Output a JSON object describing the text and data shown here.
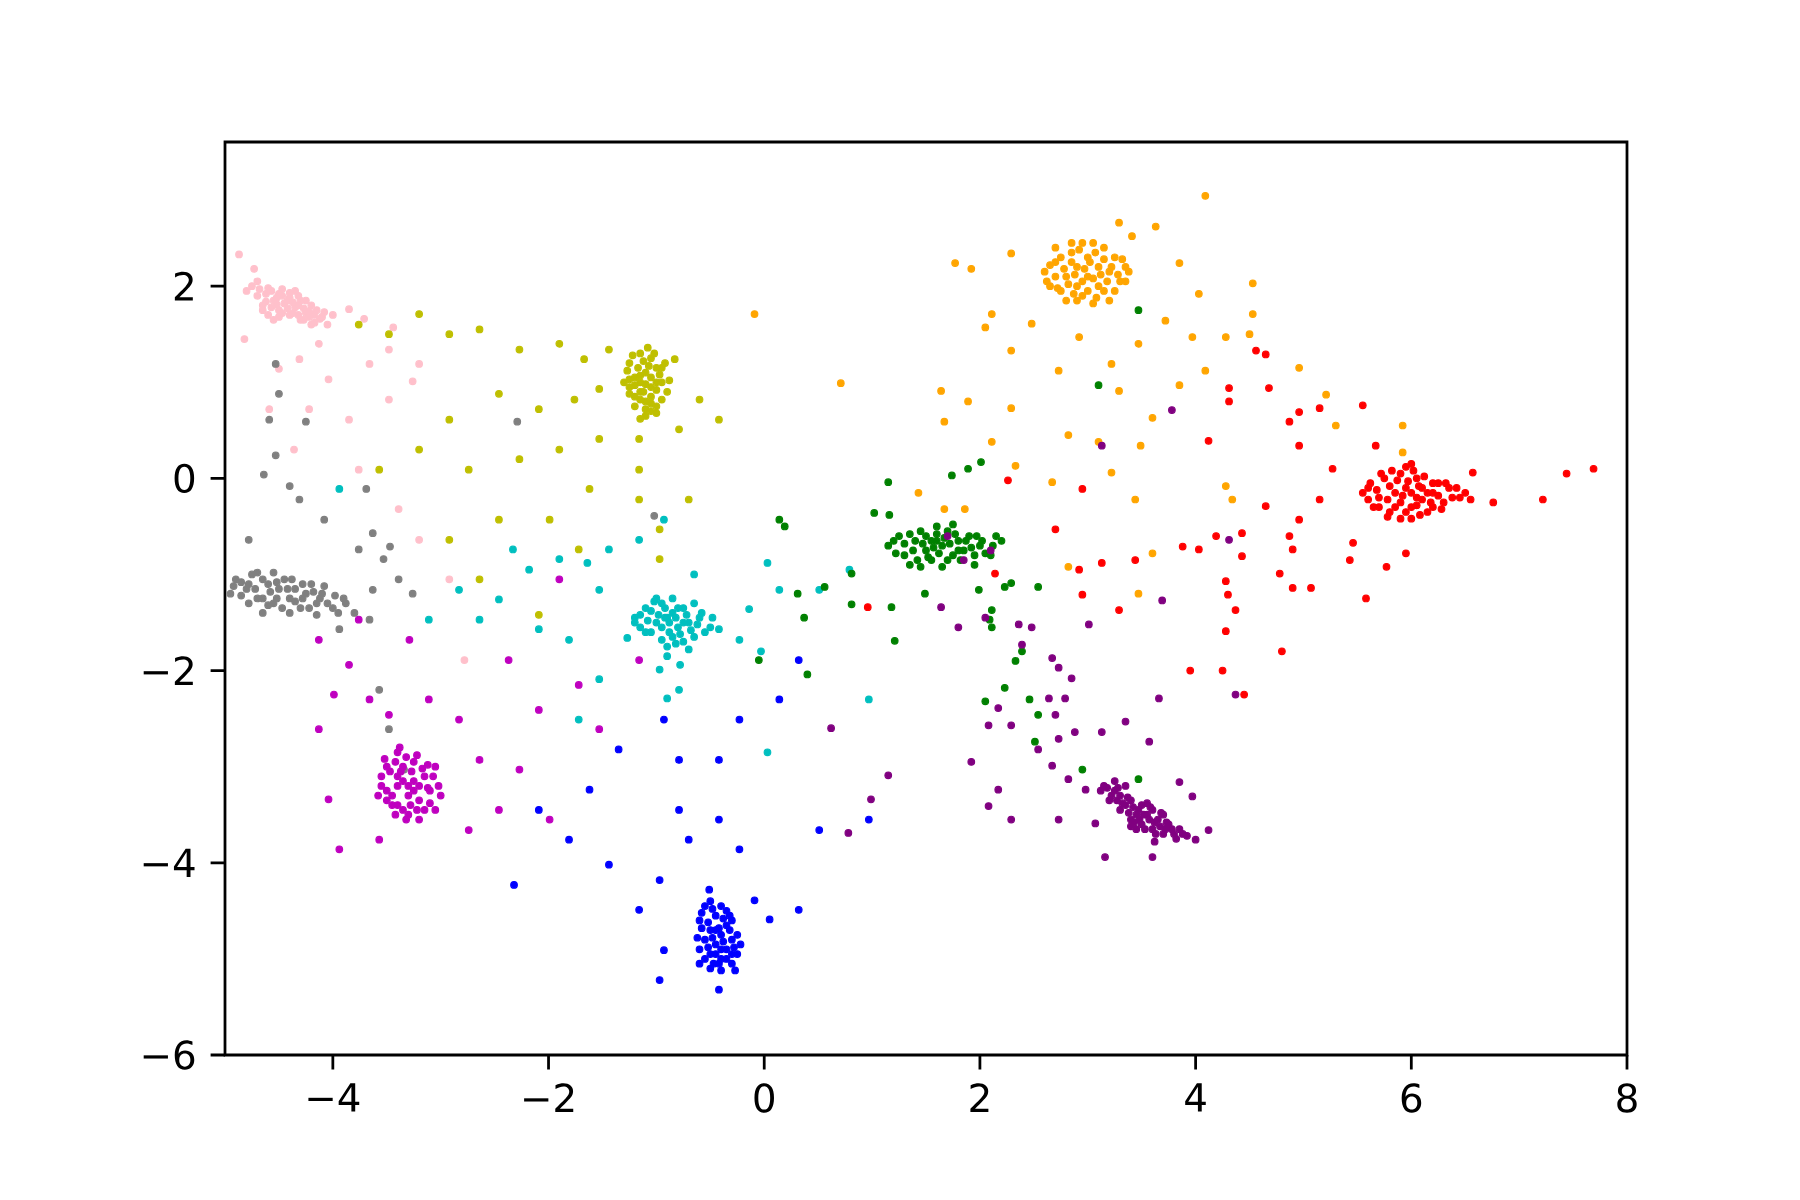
{
  "chart_data": {
    "type": "scatter",
    "marker": "circle",
    "xlim": [
      -5,
      8
    ],
    "ylim": [
      -6,
      3.5
    ],
    "xticks": [
      {
        "value": -4,
        "label": "−4"
      },
      {
        "value": -2,
        "label": "−2"
      },
      0,
      2,
      4,
      6,
      8
    ],
    "yticks": [
      {
        "value": -6,
        "label": "−6"
      },
      {
        "value": -4,
        "label": "−4"
      },
      {
        "value": -2,
        "label": "−2"
      },
      0,
      2
    ],
    "series": [
      {
        "color": "#ffc0cb",
        "x": [
          -4.8,
          -4.7,
          -4.65,
          -4.6,
          -4.55,
          -4.5,
          -4.5,
          -4.45,
          -4.4,
          -4.4,
          -4.35,
          -4.3,
          -4.3,
          -4.25,
          -4.2,
          -4.15,
          -4.1,
          -4.05,
          -4.6,
          -4.7,
          -4.35,
          -4.2,
          -4.0,
          -4.55,
          -4.87,
          -4.73,
          -3.85,
          -3.71,
          -4.13,
          -4.31,
          -4.5,
          -4.04,
          -3.66,
          -3.48,
          -3.2,
          -4.22,
          -3.85,
          -3.48,
          -4.36,
          -3.76,
          -3.39,
          -3.2,
          -2.92,
          -2.78,
          -4.59,
          -4.82,
          -3.44,
          -3.26,
          -4.75,
          -4.68,
          -4.62,
          -4.57,
          -4.52,
          -4.47,
          -4.42,
          -4.37,
          -4.32,
          -4.27,
          -4.22,
          -4.17,
          -4.12,
          -4.62,
          -4.57,
          -4.52,
          -4.47,
          -4.42,
          -4.37,
          -4.32,
          -4.27,
          -4.22,
          -4.17,
          -4.47,
          -4.4,
          -4.32,
          -4.25,
          -4.65,
          -4.5,
          -4.08
        ],
        "values": [
          1.95,
          1.9,
          1.8,
          1.98,
          1.85,
          1.75,
          1.92,
          1.82,
          1.7,
          1.88,
          1.78,
          1.65,
          1.85,
          1.72,
          1.6,
          1.75,
          1.68,
          1.6,
          1.7,
          2.05,
          1.95,
          1.8,
          1.7,
          1.65,
          2.33,
          2.18,
          1.76,
          1.66,
          1.4,
          1.24,
          1.14,
          1.03,
          1.19,
          1.34,
          1.19,
          0.72,
          0.61,
          0.82,
          0.3,
          0.09,
          -0.32,
          -0.64,
          -1.05,
          -1.89,
          0.72,
          1.45,
          1.57,
          1.01,
          2.0,
          1.97,
          1.92,
          1.95,
          1.88,
          1.9,
          1.85,
          1.83,
          1.8,
          1.77,
          1.74,
          1.7,
          1.66,
          1.84,
          1.78,
          1.81,
          1.72,
          1.77,
          1.72,
          1.7,
          1.65,
          1.68,
          1.62,
          1.97,
          1.93,
          1.9,
          1.85,
          1.75,
          1.68,
          1.73
        ]
      },
      {
        "color": "#bfbf00",
        "x": [
          -1.25,
          -1.2,
          -1.15,
          -1.1,
          -1.05,
          -1.0,
          -1.1,
          -1.2,
          -0.95,
          -1.05,
          -1.15,
          -1.0,
          -1.1,
          -1.25,
          -0.9,
          -1.05,
          -1.15,
          -1.0,
          -3.2,
          -3.76,
          -3.48,
          -2.92,
          -2.64,
          -2.27,
          -1.9,
          -1.67,
          -1.53,
          -1.76,
          -2.09,
          -2.46,
          -2.92,
          -3.2,
          -3.57,
          -2.74,
          -2.27,
          -1.9,
          -1.53,
          -1.16,
          -0.79,
          -0.42,
          -0.6,
          -1.62,
          -1.16,
          -0.7,
          -1.99,
          -2.46,
          -2.92,
          -2.64,
          -0.97,
          -1.72,
          -1.16,
          -0.83,
          -1.44,
          -2.09,
          -0.97,
          -1.22,
          -1.12,
          -1.02,
          -1.27,
          -1.17,
          -1.07,
          -0.97,
          -1.25,
          -1.15,
          -1.05,
          -0.95,
          -1.2,
          -1.1,
          -1.0,
          -1.25,
          -1.15,
          -1.05,
          -0.95,
          -1.2,
          -1.1,
          -1.0,
          -1.15,
          -1.05,
          -1.08,
          -0.92,
          -1.3,
          -0.88,
          -1.12
        ],
        "values": [
          1.2,
          1.05,
          0.9,
          1.1,
          0.95,
          1.0,
          0.8,
          0.85,
          1.15,
          1.25,
          1.3,
          0.75,
          0.65,
          0.95,
          0.9,
          0.85,
          1.0,
          1.15,
          1.71,
          1.6,
          1.5,
          1.5,
          1.55,
          1.34,
          1.4,
          1.24,
          0.93,
          0.82,
          0.72,
          0.88,
          0.61,
          0.3,
          0.09,
          0.09,
          0.2,
          0.3,
          0.41,
          0.41,
          0.51,
          0.61,
          0.82,
          -0.11,
          -0.22,
          -0.22,
          -0.43,
          -0.43,
          -0.64,
          -1.05,
          -0.53,
          -0.74,
          0.09,
          1.24,
          1.34,
          -1.42,
          -0.84,
          1.28,
          1.22,
          1.3,
          1.12,
          1.15,
          1.17,
          1.08,
          1.03,
          1.07,
          1.05,
          1.0,
          0.97,
          0.98,
          0.92,
          0.88,
          0.82,
          0.78,
          0.82,
          0.75,
          0.72,
          0.68,
          0.62,
          0.7,
          1.36,
          1.2,
          1.0,
          1.02,
          0.9
        ]
      },
      {
        "color": "#808080",
        "x": [
          -4.9,
          -4.8,
          -4.75,
          -4.7,
          -4.6,
          -4.55,
          -4.5,
          -4.45,
          -4.4,
          -4.35,
          -4.3,
          -4.25,
          -4.2,
          -4.15,
          -4.1,
          -4.0,
          -3.9,
          -3.8,
          -4.65,
          -4.95,
          -3.63,
          -3.26,
          -4.5,
          -4.64,
          -4.31,
          -4.08,
          -3.76,
          -3.53,
          -3.39,
          -3.66,
          -3.94,
          -3.57,
          -3.48,
          -3.34,
          -4.59,
          -4.78,
          -4.53,
          -4.25,
          -4.53,
          -4.4,
          -3.63,
          -3.47,
          -3.69,
          -2.29,
          -1.02,
          -4.92,
          -4.85,
          -4.85,
          -4.78,
          -4.78,
          -4.72,
          -4.65,
          -4.65,
          -4.58,
          -4.52,
          -4.52,
          -4.47,
          -4.42,
          -4.38,
          -4.35,
          -4.28,
          -4.28,
          -4.22,
          -4.18,
          -4.12,
          -4.08,
          -4.05,
          -3.98,
          -3.95,
          -3.88,
          -4.6,
          -4.4,
          -4.7,
          -4.55,
          -4.15
        ],
        "values": [
          -1.05,
          -1.15,
          -1.0,
          -1.25,
          -1.1,
          -1.3,
          -1.15,
          -1.05,
          -1.25,
          -1.15,
          -1.35,
          -1.2,
          -1.1,
          -1.3,
          -1.2,
          -1.35,
          -1.25,
          -1.4,
          -1.4,
          -1.2,
          -1.16,
          -1.2,
          0.88,
          0.04,
          -0.22,
          -0.43,
          -0.74,
          -0.84,
          -1.05,
          -1.47,
          -1.57,
          -2.2,
          -2.61,
          -3.03,
          0.61,
          -0.64,
          1.19,
          0.59,
          0.24,
          -0.08,
          -0.57,
          -0.71,
          -0.11,
          0.59,
          -0.39,
          -1.12,
          -1.08,
          -1.22,
          -1.1,
          -1.3,
          -1.15,
          -1.05,
          -1.25,
          -1.18,
          -1.08,
          -1.25,
          -1.35,
          -1.15,
          -1.05,
          -1.28,
          -1.1,
          -1.25,
          -1.35,
          -1.18,
          -1.25,
          -1.12,
          -1.3,
          -1.22,
          -1.4,
          -1.3,
          -1.32,
          -1.4,
          -0.98,
          -0.98,
          -1.42
        ]
      },
      {
        "color": "#bf00bf",
        "x": [
          -3.5,
          -3.45,
          -3.4,
          -3.35,
          -3.3,
          -3.25,
          -3.2,
          -3.15,
          -3.1,
          -3.05,
          -3.4,
          -3.3,
          -3.55,
          -3.2,
          -3.0,
          -3.35,
          -3.25,
          -3.45,
          -4.13,
          -3.85,
          -3.99,
          -3.66,
          -4.13,
          -3.48,
          -3.11,
          -2.83,
          -2.64,
          -2.46,
          -2.74,
          -4.04,
          -3.94,
          -3.57,
          -2.09,
          -1.72,
          -1.16,
          -2.27,
          -1.99,
          -1.53,
          -3.76,
          -3.29,
          -2.37,
          -1.9,
          -3.52,
          -3.42,
          -3.32,
          -3.22,
          -3.12,
          -3.55,
          -3.47,
          -3.37,
          -3.27,
          -3.17,
          -3.07,
          -3.5,
          -3.4,
          -3.3,
          -3.2,
          -3.1,
          -3.02,
          -3.5,
          -3.4,
          -3.28,
          -3.15,
          -3.42,
          -3.32,
          -3.22,
          -3.35,
          -3.25,
          -3.12,
          -3.58,
          -3.38,
          -3.05
        ],
        "values": [
          -3.0,
          -3.3,
          -3.1,
          -3.45,
          -3.2,
          -2.95,
          -3.35,
          -3.1,
          -3.25,
          -3.0,
          -2.85,
          -3.5,
          -3.2,
          -3.55,
          -3.3,
          -3.0,
          -3.15,
          -3.4,
          -1.68,
          -1.94,
          -2.25,
          -2.3,
          -2.61,
          -2.46,
          -2.3,
          -2.51,
          -2.93,
          -3.45,
          -3.66,
          -3.34,
          -3.86,
          -3.76,
          -2.41,
          -2.15,
          -1.89,
          -3.03,
          -3.55,
          -2.61,
          -1.47,
          -1.68,
          -1.89,
          -1.05,
          -2.92,
          -2.95,
          -2.9,
          -2.88,
          -2.98,
          -3.1,
          -3.05,
          -3.05,
          -3.05,
          -3.02,
          -3.1,
          -3.25,
          -3.2,
          -3.3,
          -3.2,
          -3.38,
          -3.2,
          -3.35,
          -3.4,
          -3.4,
          -3.45,
          -3.5,
          -3.55,
          -3.45,
          -3.15,
          -3.25,
          -3.22,
          -3.3,
          -2.8,
          -3.45
        ]
      },
      {
        "color": "#00bfbf",
        "x": [
          -1.2,
          -1.1,
          -1.05,
          -1.0,
          -0.95,
          -0.9,
          -0.85,
          -0.85,
          -0.8,
          -0.75,
          -0.7,
          -0.65,
          -0.6,
          -0.9,
          -1.0,
          -0.75,
          -0.5,
          -1.15,
          -2.83,
          -2.64,
          -2.46,
          -2.18,
          -1.9,
          -2.09,
          -1.81,
          -1.53,
          -1.44,
          -1.16,
          -0.93,
          -3.94,
          -1.72,
          -1.53,
          -0.79,
          -0.97,
          -0.42,
          -0.14,
          0.14,
          0.51,
          0.79,
          0.97,
          -0.23,
          -0.65,
          -3.11,
          -2.33,
          -1.64,
          -1.27,
          -0.78,
          -0.9,
          0.03,
          -0.03,
          0.03,
          -1.15,
          -1.08,
          -1.05,
          -0.98,
          -0.95,
          -0.92,
          -0.88,
          -0.82,
          -0.8,
          -0.78,
          -0.72,
          -0.68,
          -0.62,
          -0.58,
          -0.55,
          -0.88,
          -0.95,
          -0.82,
          -0.7,
          -1.02,
          -0.85,
          -0.9,
          -1.1,
          -0.48,
          -0.65,
          -1.2,
          -0.75,
          -0.92
        ],
        "values": [
          -1.45,
          -1.35,
          -1.6,
          -1.5,
          -1.3,
          -1.45,
          -1.65,
          -1.4,
          -1.55,
          -1.35,
          -1.5,
          -1.65,
          -1.45,
          -1.75,
          -1.25,
          -1.7,
          -1.55,
          -1.55,
          -1.16,
          -1.47,
          -1.26,
          -0.95,
          -0.84,
          -1.57,
          -1.68,
          -1.16,
          -0.74,
          -0.64,
          -0.43,
          -0.11,
          -2.51,
          -2.09,
          -2.2,
          -1.99,
          -1.57,
          -1.36,
          -1.16,
          -1.16,
          -0.95,
          -2.3,
          -1.68,
          -1.0,
          -1.47,
          -0.74,
          -0.88,
          -1.66,
          -1.94,
          -2.29,
          -0.88,
          -1.8,
          -2.85,
          -1.42,
          -1.48,
          -1.38,
          -1.42,
          -1.55,
          -1.35,
          -1.5,
          -1.45,
          -1.35,
          -1.62,
          -1.42,
          -1.58,
          -1.52,
          -1.4,
          -1.6,
          -1.6,
          -1.68,
          -1.72,
          -1.78,
          -1.28,
          -1.25,
          -1.85,
          -1.6,
          -1.45,
          -1.3,
          -1.5,
          -1.5,
          -1.45
        ]
      },
      {
        "color": "#0000ff",
        "x": [
          -0.6,
          -0.55,
          -0.5,
          -0.5,
          -0.45,
          -0.45,
          -0.4,
          -0.4,
          -0.35,
          -0.35,
          -0.3,
          -0.3,
          -0.25,
          -0.55,
          -0.4,
          -0.5,
          -0.3,
          -0.6,
          -0.79,
          -0.7,
          -0.42,
          -0.23,
          -0.97,
          -1.16,
          -0.93,
          -0.97,
          -0.42,
          0.05,
          0.32,
          -1.44,
          -1.81,
          -2.32,
          -2.09,
          -1.35,
          -0.93,
          -0.79,
          -0.42,
          -0.23,
          0.51,
          0.97,
          0.14,
          0.32,
          -1.62,
          -0.51,
          -0.09,
          -0.58,
          -0.52,
          -0.48,
          -0.42,
          -0.38,
          -0.32,
          -0.28,
          -0.52,
          -0.45,
          -0.42,
          -0.38,
          -0.35,
          -0.3,
          -0.25,
          -0.22,
          -0.55,
          -0.47,
          -0.62,
          -0.58,
          -0.48,
          -0.35,
          -0.45,
          -0.4,
          -0.32,
          -0.5,
          -0.27,
          -0.4,
          -0.6
        ],
        "values": [
          -4.6,
          -4.8,
          -4.7,
          -4.95,
          -4.55,
          -4.85,
          -4.75,
          -5.0,
          -4.65,
          -4.9,
          -4.8,
          -4.6,
          -4.95,
          -4.45,
          -4.45,
          -5.1,
          -5.05,
          -4.9,
          -3.45,
          -3.76,
          -3.55,
          -3.86,
          -4.18,
          -4.49,
          -4.91,
          -5.22,
          -5.32,
          -4.59,
          -4.49,
          -4.02,
          -3.76,
          -4.23,
          -3.45,
          -2.82,
          -2.51,
          -2.93,
          -2.93,
          -2.51,
          -3.66,
          -3.55,
          -2.3,
          -1.89,
          -3.24,
          -4.28,
          -4.39,
          -4.68,
          -4.62,
          -4.78,
          -4.68,
          -4.58,
          -4.7,
          -4.88,
          -4.88,
          -4.95,
          -5.05,
          -4.82,
          -5.0,
          -4.95,
          -4.75,
          -4.85,
          -5.0,
          -5.05,
          -4.78,
          -4.52,
          -4.48,
          -4.5,
          -4.7,
          -4.9,
          -4.55,
          -4.4,
          -5.12,
          -5.12,
          -5.05
        ]
      },
      {
        "color": "#008000",
        "x": [
          1.15,
          1.25,
          1.3,
          1.4,
          1.45,
          1.5,
          1.55,
          1.6,
          1.65,
          1.7,
          1.75,
          1.8,
          1.85,
          1.9,
          2.0,
          2.1,
          2.2,
          1.35,
          1.6,
          1.95,
          1.74,
          1.89,
          2.01,
          1.15,
          1.02,
          0.81,
          0.56,
          0.31,
          1.18,
          1.49,
          2.11,
          2.23,
          3.1,
          3.47,
          0.19,
          0.37,
          1.21,
          2.05,
          2.23,
          2.33,
          2.39,
          2.54,
          2.51,
          2.11,
          2.29,
          2.54,
          0.4,
          3.47,
          2.95,
          1.16,
          1.99,
          2.09,
          2.46,
          0.14,
          -0.05,
          0.81,
          1.2,
          1.22,
          1.3,
          1.35,
          1.38,
          1.42,
          1.47,
          1.5,
          1.52,
          1.57,
          1.6,
          1.62,
          1.67,
          1.7,
          1.72,
          1.77,
          1.8,
          1.82,
          1.87,
          1.92,
          1.95,
          1.97,
          2.02,
          2.05,
          2.12,
          2.15,
          1.45,
          1.65,
          1.75,
          1.55
        ],
        "values": [
          -0.7,
          -0.6,
          -0.8,
          -0.65,
          -0.55,
          -0.75,
          -0.85,
          -0.65,
          -0.7,
          -0.55,
          -0.8,
          -0.65,
          -0.75,
          -0.6,
          -0.7,
          -0.8,
          -0.65,
          -0.9,
          -0.5,
          -0.9,
          0.03,
          0.1,
          0.17,
          -0.04,
          -0.36,
          -0.99,
          -1.13,
          -1.2,
          -1.34,
          -1.2,
          -1.37,
          -1.13,
          0.97,
          1.75,
          -0.5,
          -1.45,
          -1.69,
          -2.32,
          -2.18,
          -1.9,
          -1.8,
          -2.46,
          -2.74,
          -1.55,
          -1.09,
          -1.13,
          -2.04,
          -3.13,
          -3.03,
          -0.38,
          -1.16,
          -1.47,
          -2.3,
          -0.43,
          -1.89,
          -1.31,
          -0.65,
          -0.78,
          -0.68,
          -0.58,
          -0.75,
          -0.85,
          -0.68,
          -0.6,
          -0.82,
          -0.72,
          -0.58,
          -0.78,
          -0.62,
          -0.85,
          -0.68,
          -0.58,
          -0.75,
          -0.85,
          -0.65,
          -0.72,
          -0.8,
          -0.6,
          -0.65,
          -0.78,
          -0.7,
          -0.6,
          -0.92,
          -0.92,
          -0.48,
          -0.65
        ]
      },
      {
        "color": "#ffa500",
        "x": [
          2.6,
          2.65,
          2.7,
          2.75,
          2.8,
          2.85,
          2.9,
          2.9,
          2.95,
          3.0,
          3.0,
          3.05,
          3.1,
          3.1,
          3.15,
          3.2,
          3.25,
          3.3,
          3.35,
          2.8,
          3.2,
          2.7,
          4.09,
          3.29,
          3.63,
          3.41,
          3.85,
          4.03,
          4.53,
          4.53,
          4.28,
          4.5,
          4.96,
          5.21,
          5.3,
          5.92,
          5.92,
          2.29,
          1.77,
          1.92,
          2.05,
          2.11,
          2.29,
          2.48,
          2.73,
          2.92,
          3.22,
          3.47,
          3.72,
          3.97,
          4.09,
          3.85,
          3.6,
          3.29,
          2.82,
          3.1,
          3.49,
          2.67,
          3.22,
          2.33,
          2.11,
          1.89,
          1.64,
          1.67,
          2.29,
          0.71,
          4.28,
          4.34,
          3.44,
          1.67,
          1.86,
          2.82,
          3.6,
          3.47,
          1.43,
          -0.09,
          2.62,
          2.65,
          2.7,
          2.72,
          2.75,
          2.78,
          2.82,
          2.85,
          2.87,
          2.88,
          2.92,
          2.95,
          2.97,
          3.0,
          3.02,
          3.05,
          3.07,
          3.08,
          3.12,
          3.15,
          3.18,
          3.22,
          3.25,
          3.28,
          3.32,
          3.35,
          3.38,
          2.95,
          3.15,
          2.85,
          3.05,
          2.9
        ],
        "values": [
          2.15,
          2.0,
          2.25,
          1.95,
          2.1,
          2.35,
          2.0,
          2.2,
          1.9,
          2.1,
          2.3,
          2.45,
          2.0,
          2.2,
          1.95,
          2.15,
          2.3,
          2.05,
          2.2,
          1.85,
          1.85,
          2.4,
          2.94,
          2.66,
          2.62,
          2.52,
          2.24,
          1.92,
          2.03,
          1.71,
          1.47,
          1.5,
          1.15,
          0.87,
          0.55,
          0.55,
          0.27,
          2.34,
          2.24,
          2.18,
          1.57,
          1.71,
          1.33,
          1.61,
          1.12,
          1.47,
          1.19,
          1.4,
          1.64,
          1.47,
          1.12,
          0.97,
          0.63,
          0.91,
          0.45,
          0.38,
          0.34,
          -0.04,
          0.06,
          0.13,
          0.38,
          0.8,
          0.91,
          0.59,
          0.73,
          0.99,
          -0.08,
          -0.22,
          -0.22,
          -0.32,
          -0.32,
          -0.92,
          -0.78,
          -1.2,
          -0.15,
          1.71,
          2.05,
          2.22,
          2.1,
          1.98,
          2.3,
          2.18,
          2.02,
          2.25,
          1.92,
          2.12,
          2.38,
          2.05,
          2.18,
          1.95,
          2.25,
          2.08,
          2.35,
          1.88,
          2.12,
          2.28,
          2.05,
          2.2,
          1.95,
          2.12,
          2.28,
          2.05,
          2.15,
          2.45,
          2.4,
          2.45,
          1.82,
          1.85
        ]
      },
      {
        "color": "#ff0000",
        "x": [
          5.6,
          5.65,
          5.7,
          5.75,
          5.8,
          5.85,
          5.9,
          5.9,
          5.95,
          6.0,
          6.05,
          6.05,
          6.1,
          6.15,
          6.2,
          6.25,
          6.3,
          6.35,
          6.45,
          6.0,
          5.95,
          6.2,
          7.69,
          7.44,
          7.22,
          6.76,
          6.57,
          5.55,
          5.67,
          5.27,
          5.15,
          4.96,
          4.87,
          4.9,
          5.46,
          5.43,
          4.78,
          4.9,
          5.07,
          5.77,
          5.58,
          5.95,
          4.96,
          4.96,
          4.87,
          5.15,
          4.65,
          4.56,
          4.68,
          4.31,
          4.31,
          4.12,
          4.65,
          4.43,
          4.19,
          4.03,
          3.88,
          4.43,
          4.28,
          4.3,
          4.37,
          4.28,
          3.29,
          2.95,
          2.7,
          2.92,
          2.95,
          3.13,
          3.44,
          2.26,
          2.14,
          0.96,
          4.8,
          4.25,
          3.95,
          4.45,
          5.6,
          5.62,
          5.68,
          5.7,
          5.72,
          5.78,
          5.8,
          5.82,
          5.85,
          5.87,
          5.92,
          5.95,
          5.97,
          6.0,
          6.02,
          6.05,
          6.07,
          6.1,
          6.12,
          6.15,
          6.18,
          6.2,
          6.25,
          6.28,
          6.32,
          6.38,
          6.42,
          6.5,
          6.55,
          5.78,
          5.9,
          6.08,
          5.55,
          6.0
        ],
        "values": [
          -0.1,
          -0.3,
          -0.2,
          0.0,
          -0.35,
          -0.15,
          -0.25,
          0.05,
          -0.1,
          -0.3,
          -0.2,
          0.0,
          -0.1,
          -0.35,
          -0.15,
          -0.05,
          -0.25,
          -0.1,
          -0.2,
          -0.42,
          0.12,
          -0.3,
          0.1,
          0.05,
          -0.22,
          -0.25,
          0.06,
          0.76,
          0.34,
          0.1,
          -0.22,
          -0.43,
          -0.6,
          -0.74,
          -0.67,
          -0.85,
          -0.99,
          -1.14,
          -1.14,
          -0.92,
          -1.25,
          -0.78,
          0.34,
          0.69,
          0.59,
          0.73,
          1.29,
          1.33,
          0.94,
          0.94,
          0.8,
          0.39,
          -0.29,
          -0.57,
          -0.6,
          -0.74,
          -0.71,
          -0.81,
          -1.07,
          -1.21,
          -1.37,
          -1.59,
          -1.37,
          -0.11,
          -0.53,
          -0.95,
          -1.21,
          -0.88,
          -0.85,
          -0.02,
          -0.99,
          -1.34,
          -1.8,
          -2.0,
          -2.0,
          -2.25,
          -0.22,
          -0.05,
          -0.12,
          -0.3,
          0.05,
          -0.22,
          -0.08,
          0.08,
          -0.3,
          -0.02,
          -0.18,
          -0.35,
          -0.03,
          -0.15,
          0.08,
          -0.28,
          -0.08,
          -0.22,
          0.02,
          -0.15,
          -0.25,
          -0.05,
          -0.18,
          -0.32,
          -0.05,
          -0.2,
          -0.1,
          -0.15,
          -0.22,
          -0.4,
          -0.42,
          -0.38,
          -0.15,
          0.15
        ]
      },
      {
        "color": "#800080",
        "x": [
          3.15,
          3.2,
          3.25,
          3.3,
          3.3,
          3.35,
          3.4,
          3.4,
          3.45,
          3.5,
          3.5,
          3.55,
          3.6,
          3.6,
          3.65,
          3.7,
          3.75,
          3.8,
          3.85,
          3.45,
          3.35,
          3.7,
          1.64,
          2.05,
          2.36,
          2.48,
          2.39,
          2.67,
          2.73,
          2.85,
          2.64,
          2.79,
          2.7,
          2.08,
          2.17,
          2.29,
          2.73,
          2.88,
          3.13,
          3.35,
          3.66,
          3.57,
          3.85,
          3.97,
          4.12,
          4.0,
          3.6,
          3.07,
          2.98,
          2.82,
          2.67,
          2.54,
          2.17,
          2.08,
          2.29,
          1.92,
          1.15,
          0.99,
          0.78,
          0.62,
          1.8,
          3.01,
          3.69,
          4.37,
          3.16,
          2.73,
          1.7,
          1.85,
          2.1,
          3.78,
          3.13,
          4.31,
          3.12,
          3.18,
          3.22,
          3.27,
          3.28,
          3.32,
          3.37,
          3.38,
          3.42,
          3.43,
          3.47,
          3.48,
          3.52,
          3.53,
          3.57,
          3.58,
          3.62,
          3.63,
          3.67,
          3.68,
          3.72,
          3.73,
          3.78,
          3.82,
          3.88,
          3.92,
          3.55,
          3.4,
          3.62,
          3.25
        ],
        "values": [
          -3.2,
          -3.35,
          -3.25,
          -3.45,
          -3.3,
          -3.4,
          -3.55,
          -3.35,
          -3.5,
          -3.6,
          -3.4,
          -3.5,
          -3.65,
          -3.45,
          -3.55,
          -3.7,
          -3.6,
          -3.7,
          -3.65,
          -3.65,
          -3.2,
          -3.5,
          -1.34,
          -1.45,
          -1.52,
          -1.55,
          -1.73,
          -1.87,
          -1.97,
          -2.08,
          -2.29,
          -2.29,
          -2.46,
          -2.57,
          -2.39,
          -2.57,
          -2.71,
          -2.64,
          -2.64,
          -2.53,
          -2.29,
          -2.74,
          -3.16,
          -3.31,
          -3.66,
          -3.76,
          -3.94,
          -3.59,
          -3.24,
          -3.13,
          -2.99,
          -2.82,
          -3.24,
          -3.41,
          -3.55,
          -2.95,
          -3.09,
          -3.34,
          -3.69,
          -2.6,
          -1.55,
          -1.52,
          -1.27,
          -2.25,
          -3.94,
          -3.55,
          -0.6,
          -0.85,
          -0.75,
          0.71,
          0.34,
          -0.64,
          -3.25,
          -3.22,
          -3.3,
          -3.35,
          -3.22,
          -3.38,
          -3.32,
          -3.48,
          -3.42,
          -3.58,
          -3.45,
          -3.55,
          -3.5,
          -3.65,
          -3.55,
          -3.42,
          -3.58,
          -3.7,
          -3.62,
          -3.48,
          -3.65,
          -3.58,
          -3.65,
          -3.75,
          -3.7,
          -3.72,
          -3.38,
          -3.62,
          -3.78,
          -3.15
        ]
      }
    ]
  }
}
